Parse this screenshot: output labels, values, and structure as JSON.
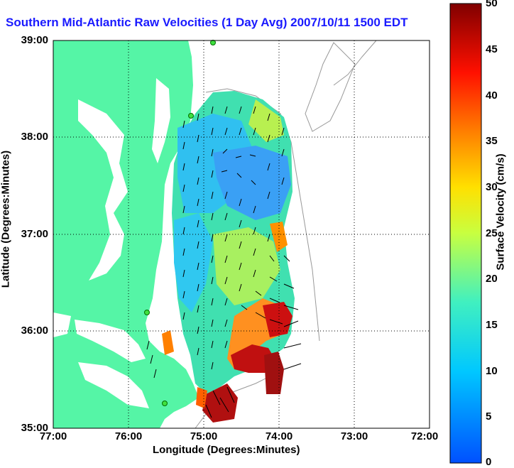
{
  "title": "Southern Mid-Atlantic Raw Velocities (1 Day Avg) 2007/10/11 1500 EDT",
  "axes": {
    "xlabel": "Longitude (Degrees:Minutes)",
    "ylabel": "Latitude (Degrees:Minutes)",
    "xticks": [
      "77:00",
      "76:00",
      "75:00",
      "74:00",
      "73:00",
      "72:00"
    ],
    "yticks": [
      "39:00",
      "38:00",
      "37:00",
      "36:00",
      "35:00"
    ]
  },
  "colorbar": {
    "label": "Surface Velocity (cm/s)",
    "ticks": [
      "50",
      "45",
      "40",
      "35",
      "30",
      "25",
      "20",
      "15",
      "10",
      "5",
      "0"
    ],
    "min": 0,
    "max": 50
  },
  "colors": {
    "land": "#55f5a6",
    "title": "#1a1aff"
  }
}
